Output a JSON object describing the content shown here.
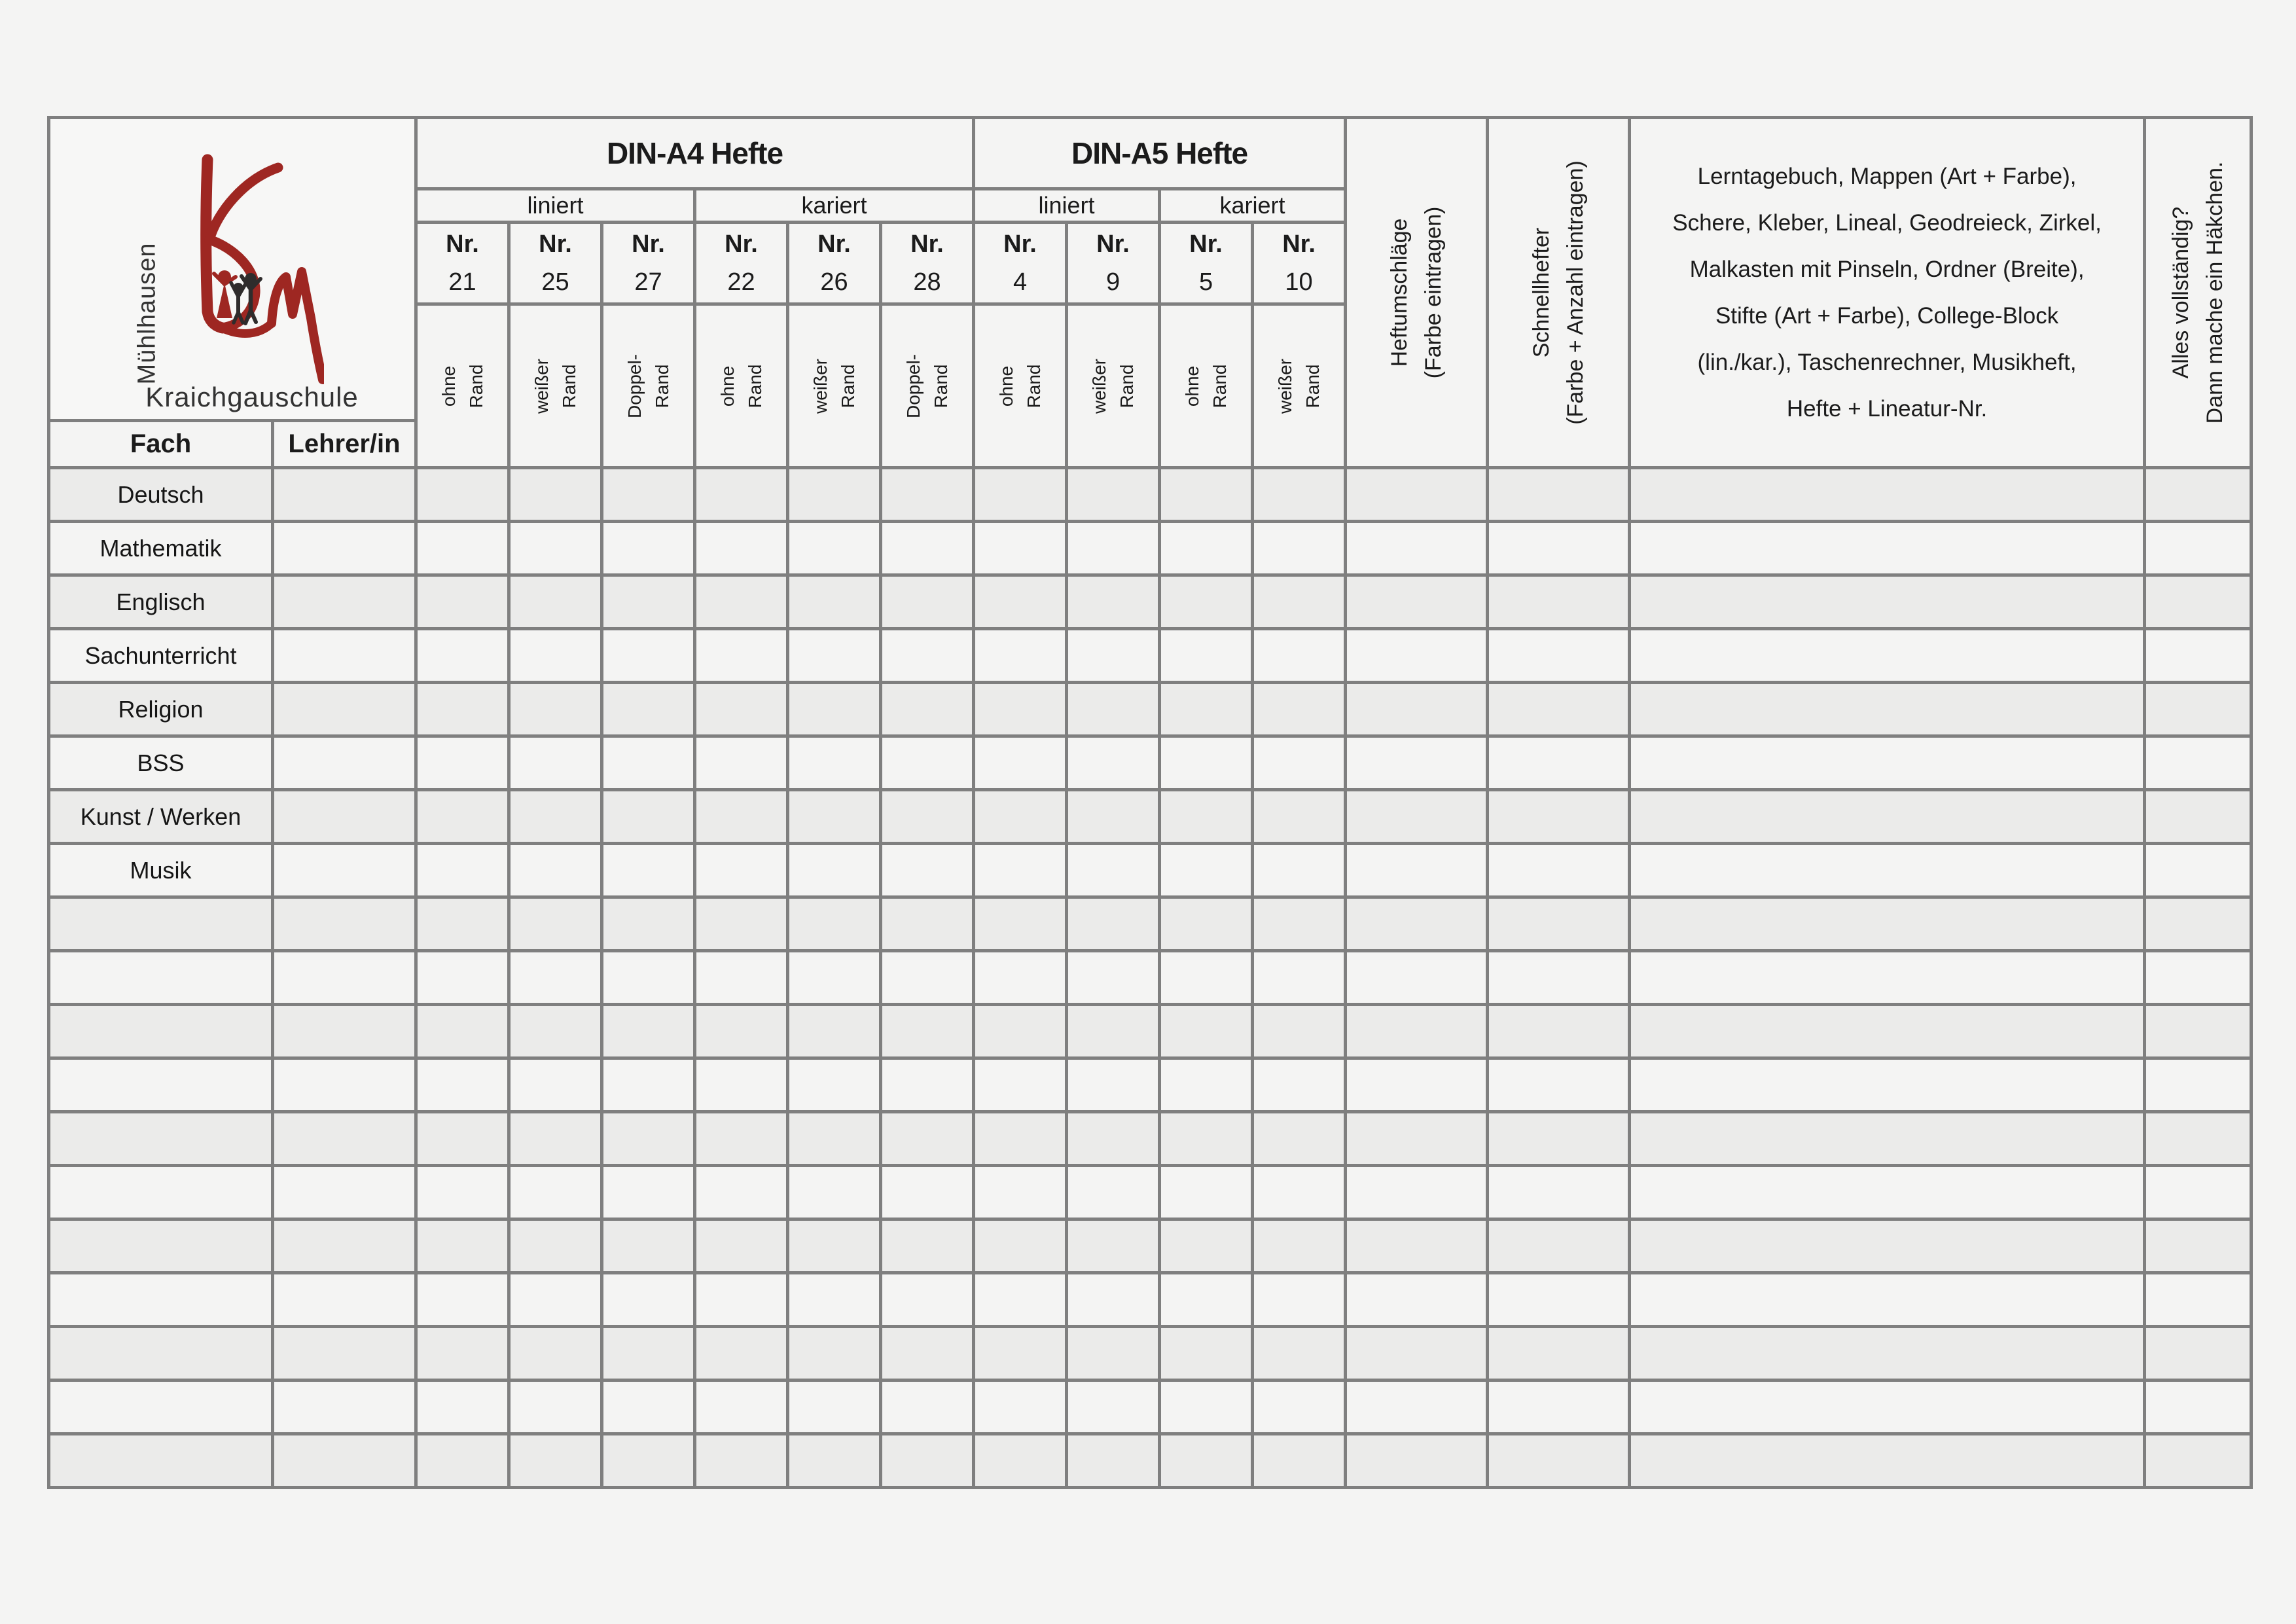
{
  "page": {
    "background": "#f4f4f3",
    "border_color": "#7f7f7f",
    "shade_row": "#ebebea",
    "light_row": "#f4f4f3"
  },
  "logo": {
    "monogram": "KSM",
    "city": "Mühlhausen",
    "school": "Kraichgauschule",
    "red": "#9e2722",
    "dark": "#2f2c2c"
  },
  "header": {
    "din_a4": "DIN-A4 Hefte",
    "din_a5": "DIN-A5 Hefte",
    "liniert": "liniert",
    "kariert": "kariert",
    "nr": "Nr.",
    "fach": "Fach",
    "lehrer": "Lehrer/in",
    "heftumschlaege": {
      "line1": "Heftumschläge",
      "line2": "(Farbe eintragen)"
    },
    "schnellhefter": {
      "line1": "Schnellhefter",
      "line2": "(Farbe + Anzahl eintragen)"
    },
    "materials": "Lerntagebuch, Mappen (Art + Farbe), Schere, Kleber, Lineal, Geodreieck, Zirkel, Malkasten mit Pinseln, Ordner (Breite), Stifte (Art + Farbe), College-Block (lin./kar.), Taschenrechner, Musikheft, Hefte + Lineatur-Nr.",
    "complete": {
      "line1": "Alles vollständig?",
      "line2": "Dann mache ein Häkchen."
    }
  },
  "notebook_columns": [
    {
      "nr": "21",
      "edge1": "ohne",
      "edge2": "Rand"
    },
    {
      "nr": "25",
      "edge1": "weißer",
      "edge2": "Rand"
    },
    {
      "nr": "27",
      "edge1": "Doppel-",
      "edge2": "Rand"
    },
    {
      "nr": "22",
      "edge1": "ohne",
      "edge2": "Rand"
    },
    {
      "nr": "26",
      "edge1": "weißer",
      "edge2": "Rand"
    },
    {
      "nr": "28",
      "edge1": "Doppel-",
      "edge2": "Rand"
    },
    {
      "nr": "4",
      "edge1": "ohne",
      "edge2": "Rand"
    },
    {
      "nr": "9",
      "edge1": "weißer",
      "edge2": "Rand"
    },
    {
      "nr": "5",
      "edge1": "ohne",
      "edge2": "Rand"
    },
    {
      "nr": "10",
      "edge1": "weißer",
      "edge2": "Rand"
    }
  ],
  "rows": [
    "Deutsch",
    "Mathematik",
    "Englisch",
    "Sachunterricht",
    "Religion",
    "BSS",
    "Kunst / Werken",
    "Musik",
    "",
    "",
    "",
    "",
    "",
    "",
    "",
    "",
    "",
    "",
    ""
  ]
}
